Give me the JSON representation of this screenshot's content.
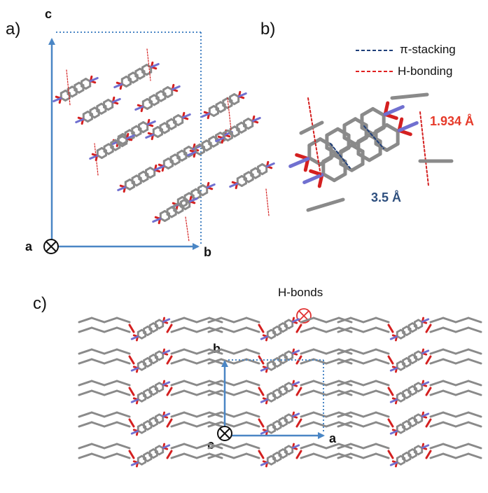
{
  "panels": {
    "a": {
      "label": "a)",
      "axes": {
        "vertical": "c",
        "horizontal": "b",
        "view": "a"
      }
    },
    "b": {
      "label": "b)",
      "legend": [
        {
          "text": "π-stacking",
          "color": "#1f3f7a",
          "style": "dashed"
        },
        {
          "text": "H-bonding",
          "color": "#e02020",
          "style": "dashed"
        }
      ],
      "measurements": {
        "hbond": "1.934 Å",
        "stacking": "3.5 Å"
      },
      "colors": {
        "hbond": "#e63a2a",
        "stacking": "#2e4f7e"
      }
    },
    "c": {
      "label": "c)",
      "title": "H-bonds",
      "title_symbol_color": "#e03030",
      "axes": {
        "vertical": "b",
        "horizontal": "a",
        "view": "c"
      }
    }
  },
  "colors": {
    "cell": "#4a86c5",
    "carbon": "#8a8a8a",
    "oxygen": "#d42020",
    "nitrogen": "#7070d0"
  }
}
